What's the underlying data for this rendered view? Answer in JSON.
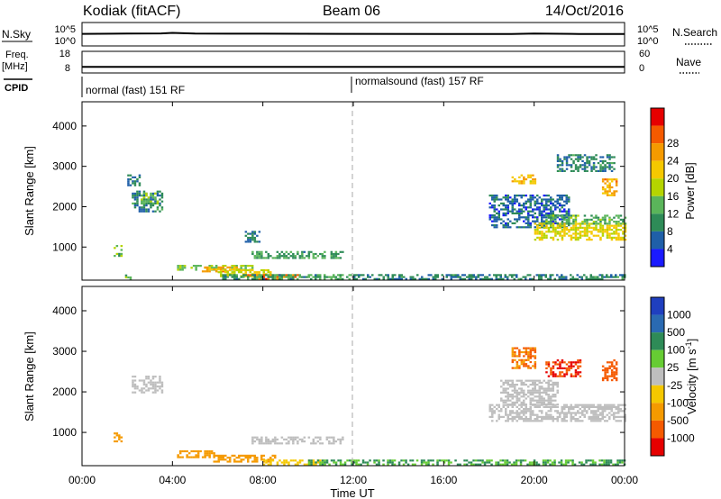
{
  "header": {
    "station": "Kodiak (fitACF)",
    "beam": "Beam 06",
    "date": "14/Oct/2016"
  },
  "colors": {
    "axis": "#000000",
    "gridline": "#aaaaaa",
    "power_scale": [
      "#1a1aff",
      "#1f5fa8",
      "#2e8b57",
      "#5ab55a",
      "#b5d400",
      "#f5c800",
      "#f59a00",
      "#f55a00",
      "#e60000"
    ],
    "velocity_scale": [
      "#1f3fbf",
      "#2a6ab2",
      "#2e8b57",
      "#66cc33",
      "#bebebe",
      "#f5c800",
      "#f59a00",
      "#f55a00",
      "#e60000"
    ]
  },
  "chart_data": [
    {
      "type": "line",
      "name": "n-sky-n-search",
      "ylabel_left": "N.Sky",
      "ylabel_right": "N.Search",
      "yticks_left": [
        "10^5",
        "10^0"
      ],
      "yticks_right": [
        "10^5",
        "10^0"
      ],
      "x": [
        "00:00",
        "02:00",
        "03:30",
        "04:00",
        "05:00",
        "08:00",
        "12:00",
        "16:00",
        "19:00",
        "20:00",
        "22:00",
        "24:00"
      ],
      "values": [
        600,
        700,
        800,
        1200,
        700,
        650,
        600,
        550,
        500,
        750,
        550,
        500
      ]
    },
    {
      "type": "line",
      "name": "freq-nave",
      "ylabel_left": "Freq. [MHz]",
      "ylabel_right": "Nave",
      "yticks_left": [
        "18",
        "8"
      ],
      "yticks_right": [
        "60",
        "0"
      ],
      "ylim": [
        8,
        18
      ],
      "x": [
        "00:00",
        "24:00"
      ],
      "values": [
        10.5,
        10.5
      ]
    },
    {
      "type": "table",
      "name": "cpid",
      "label": "CPID",
      "segments": [
        {
          "start": "00:00",
          "end": "12:00",
          "text": "normal (fast) 151 RF"
        },
        {
          "start": "12:00",
          "end": "24:00",
          "text": "normalsound (fast) 157 RF"
        }
      ]
    },
    {
      "type": "heatmap",
      "name": "power",
      "ylabel": "Slant Range [km]",
      "yticks": [
        1000,
        2000,
        3000,
        4000
      ],
      "ylim": [
        180,
        4600
      ],
      "xlim": [
        0,
        24
      ],
      "colorbar_label": "Power [dB]",
      "colorbar_ticks": [
        "4",
        "8",
        "12",
        "16",
        "20",
        "24",
        "28"
      ],
      "regions": [
        {
          "t0": 1.4,
          "t1": 1.7,
          "r0": 780,
          "r1": 1050,
          "value": 12
        },
        {
          "t0": 1.9,
          "t1": 2.1,
          "r0": 210,
          "r1": 320,
          "value": 12
        },
        {
          "t0": 2.0,
          "t1": 2.5,
          "r0": 2550,
          "r1": 2800,
          "value": 8
        },
        {
          "t0": 2.2,
          "t1": 3.5,
          "r0": 1900,
          "r1": 2400,
          "value": 8
        },
        {
          "t0": 2.6,
          "t1": 3.3,
          "r0": 2100,
          "r1": 2350,
          "value": 14
        },
        {
          "t0": 4.2,
          "t1": 7.5,
          "r0": 420,
          "r1": 560,
          "value": 14
        },
        {
          "t0": 5.3,
          "t1": 6.9,
          "r0": 400,
          "r1": 520,
          "value": 22
        },
        {
          "t0": 6.0,
          "t1": 8.3,
          "r0": 300,
          "r1": 450,
          "value": 18
        },
        {
          "t0": 7.3,
          "t1": 9.5,
          "r0": 230,
          "r1": 330,
          "value": 26
        },
        {
          "t0": 6.2,
          "t1": 12.0,
          "r0": 190,
          "r1": 330,
          "value": 10
        },
        {
          "t0": 12.0,
          "t1": 24.0,
          "r0": 190,
          "r1": 330,
          "value": 8
        },
        {
          "t0": 7.5,
          "t1": 11.5,
          "r0": 750,
          "r1": 900,
          "value": 10
        },
        {
          "t0": 7.2,
          "t1": 7.8,
          "r0": 1150,
          "r1": 1400,
          "value": 8
        },
        {
          "t0": 18.0,
          "t1": 21.5,
          "r0": 1500,
          "r1": 2300,
          "value": 6
        },
        {
          "t0": 20.0,
          "t1": 24.0,
          "r0": 1200,
          "r1": 1600,
          "value": 18
        },
        {
          "t0": 20.5,
          "t1": 24.0,
          "r0": 1600,
          "r1": 1800,
          "value": 12
        },
        {
          "t0": 19.0,
          "t1": 20.0,
          "r0": 2600,
          "r1": 2800,
          "value": 20
        },
        {
          "t0": 21.0,
          "t1": 23.5,
          "r0": 2900,
          "r1": 3300,
          "value": 8
        },
        {
          "t0": 23.0,
          "t1": 23.6,
          "r0": 2300,
          "r1": 2700,
          "value": 22
        }
      ]
    },
    {
      "type": "heatmap",
      "name": "velocity",
      "ylabel": "Slant Range [km]",
      "xlabel": "Time UT",
      "xticks": [
        "00:00",
        "04:00",
        "08:00",
        "12:00",
        "16:00",
        "20:00",
        "00:00"
      ],
      "yticks": [
        1000,
        2000,
        3000,
        4000
      ],
      "ylim": [
        180,
        4600
      ],
      "xlim": [
        0,
        24
      ],
      "colorbar_label": "Velocity [m s^-1]",
      "colorbar_ticks": [
        "1000",
        "500",
        "100",
        "25",
        "-25",
        "-100",
        "-500",
        "-1000"
      ],
      "regions": [
        {
          "t0": 1.4,
          "t1": 1.7,
          "r0": 780,
          "r1": 1000,
          "value": -200
        },
        {
          "t0": 2.2,
          "t1": 3.5,
          "r0": 2000,
          "r1": 2400,
          "value": 0
        },
        {
          "t0": 4.2,
          "t1": 5.8,
          "r0": 400,
          "r1": 560,
          "value": -150
        },
        {
          "t0": 5.8,
          "t1": 8.5,
          "r0": 300,
          "r1": 450,
          "value": -120
        },
        {
          "t0": 8.0,
          "t1": 10.5,
          "r0": 230,
          "r1": 330,
          "value": -80
        },
        {
          "t0": 10.0,
          "t1": 24.0,
          "r0": 190,
          "r1": 330,
          "value": 60
        },
        {
          "t0": 7.5,
          "t1": 11.5,
          "r0": 750,
          "r1": 900,
          "value": 0
        },
        {
          "t0": 18.0,
          "t1": 24.0,
          "r0": 1300,
          "r1": 1700,
          "value": 0
        },
        {
          "t0": 18.5,
          "t1": 21.0,
          "r0": 1700,
          "r1": 2300,
          "value": 0
        },
        {
          "t0": 19.0,
          "t1": 20.0,
          "r0": 2600,
          "r1": 3100,
          "value": -300
        },
        {
          "t0": 20.5,
          "t1": 22.0,
          "r0": 2400,
          "r1": 2800,
          "value": -600
        },
        {
          "t0": 23.0,
          "t1": 23.6,
          "r0": 2300,
          "r1": 2800,
          "value": -500
        }
      ]
    }
  ]
}
